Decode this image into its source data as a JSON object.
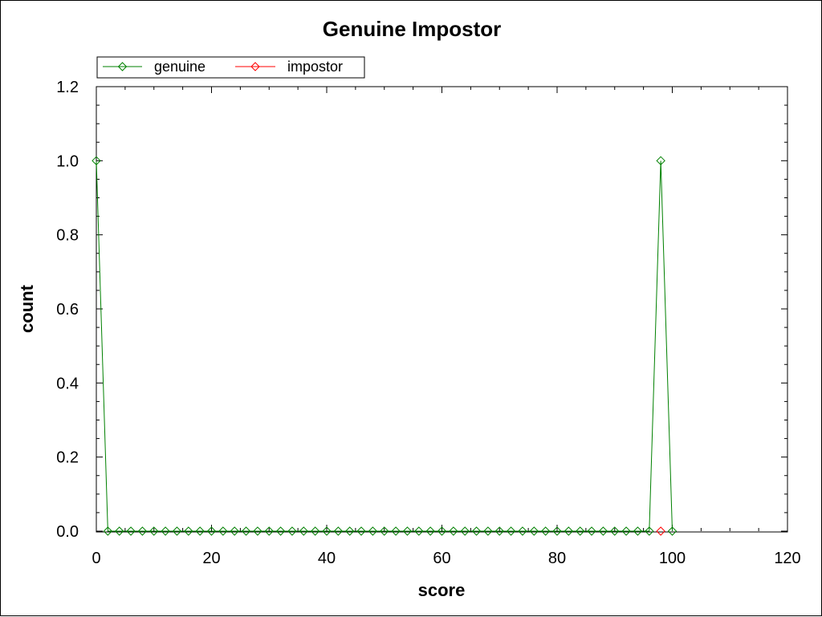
{
  "chart_data": {
    "type": "line",
    "title": "Genuine Impostor",
    "xlabel": "score",
    "ylabel": "count",
    "xlim": [
      0,
      120
    ],
    "ylim": [
      0,
      1.2
    ],
    "xticks": [
      0,
      20,
      40,
      60,
      80,
      100,
      120
    ],
    "yticks": [
      0.0,
      0.2,
      0.4,
      0.6,
      0.8,
      1.0,
      1.2
    ],
    "xtick_labels": [
      "0",
      "20",
      "40",
      "60",
      "80",
      "100",
      "120"
    ],
    "ytick_labels": [
      "0.0",
      "0.2",
      "0.4",
      "0.6",
      "0.8",
      "1.0",
      "1.2"
    ],
    "grid": false,
    "legend_position": "top-left",
    "marker": "diamond",
    "series": [
      {
        "name": "genuine",
        "color": "#008000",
        "x": [
          0,
          2,
          4,
          6,
          8,
          10,
          12,
          14,
          16,
          18,
          20,
          22,
          24,
          26,
          28,
          30,
          32,
          34,
          36,
          38,
          40,
          42,
          44,
          46,
          48,
          50,
          52,
          54,
          56,
          58,
          60,
          62,
          64,
          66,
          68,
          70,
          72,
          74,
          76,
          78,
          80,
          82,
          84,
          86,
          88,
          90,
          92,
          94,
          96,
          98,
          100
        ],
        "y": [
          1,
          0,
          0,
          0,
          0,
          0,
          0,
          0,
          0,
          0,
          0,
          0,
          0,
          0,
          0,
          0,
          0,
          0,
          0,
          0,
          0,
          0,
          0,
          0,
          0,
          0,
          0,
          0,
          0,
          0,
          0,
          0,
          0,
          0,
          0,
          0,
          0,
          0,
          0,
          0,
          0,
          0,
          0,
          0,
          0,
          0,
          0,
          0,
          0,
          1,
          0
        ]
      },
      {
        "name": "impostor",
        "color": "#ff0000",
        "x": [
          98
        ],
        "y": [
          0
        ]
      }
    ]
  }
}
